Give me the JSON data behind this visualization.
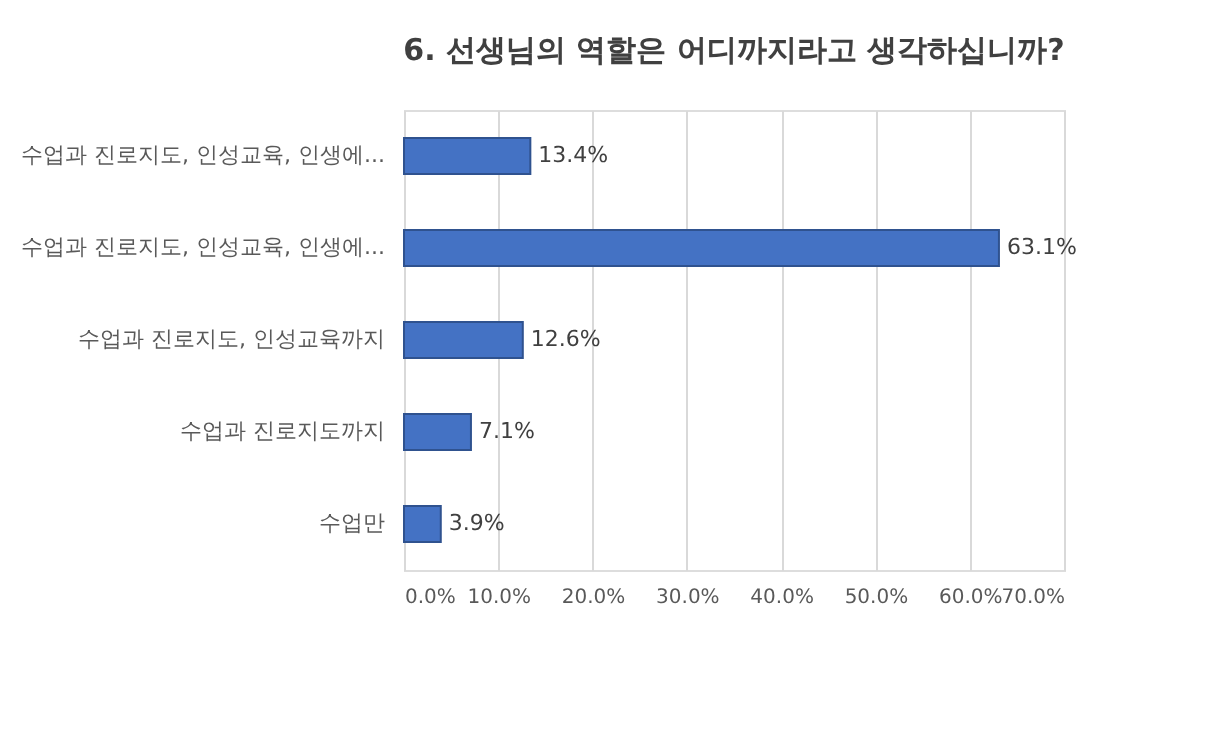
{
  "chart_data": {
    "type": "bar",
    "orientation": "horizontal",
    "title": "6. 선생님의 역할은 어디까지라고 생각하십니까?",
    "categories": [
      "수업과 진로지도, 인성교육, 인생에...",
      "수업과 진로지도, 인성교육, 인생에...",
      "수업과 진로지도, 인성교육까지",
      "수업과 진로지도까지",
      "수업만"
    ],
    "values": [
      13.4,
      63.1,
      12.6,
      7.1,
      3.9
    ],
    "value_labels": [
      "13.4%",
      "63.1%",
      "12.6%",
      "7.1%",
      "3.9%"
    ],
    "color": "#4472c4",
    "xlim": [
      0,
      70
    ],
    "xticks": [
      {
        "value": 0,
        "label": "0.0%"
      },
      {
        "value": 10,
        "label": "10.0%"
      },
      {
        "value": 20,
        "label": "20.0%"
      },
      {
        "value": 30,
        "label": "30.0%"
      },
      {
        "value": 40,
        "label": "40.0%"
      },
      {
        "value": 50,
        "label": "50.0%"
      },
      {
        "value": 60,
        "label": "60.0%"
      },
      {
        "value": 70,
        "label": "70.0%"
      }
    ],
    "grid": "x"
  }
}
